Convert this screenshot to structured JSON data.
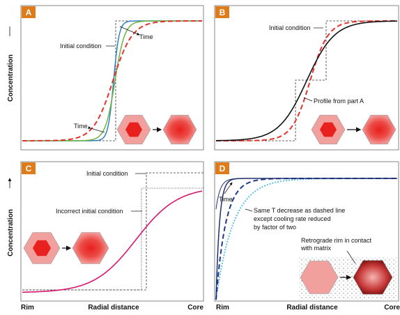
{
  "panels": [
    {
      "label": "A",
      "annotations": [
        "Time",
        "Initial condition",
        "Time"
      ]
    },
    {
      "label": "B",
      "annotations": [
        "Initial condition",
        "Profile from part A"
      ]
    },
    {
      "label": "C",
      "annotations": [
        "Initial condition",
        "Incorrect initial condition"
      ]
    },
    {
      "label": "D",
      "annotations": [
        "Time",
        "Same T decrease as dashed line",
        "except cooling rate reduced",
        "by factor of two",
        "Retrograde rim in contact",
        "with matrix"
      ]
    }
  ],
  "y_axes": [
    "Concentration",
    "Concentration"
  ],
  "x_axes": [
    {
      "start": "Rim",
      "middle": "Radial distance",
      "end": "Core"
    },
    {
      "start": "Rim",
      "middle": "Radial distance",
      "end": "Core"
    }
  ]
}
